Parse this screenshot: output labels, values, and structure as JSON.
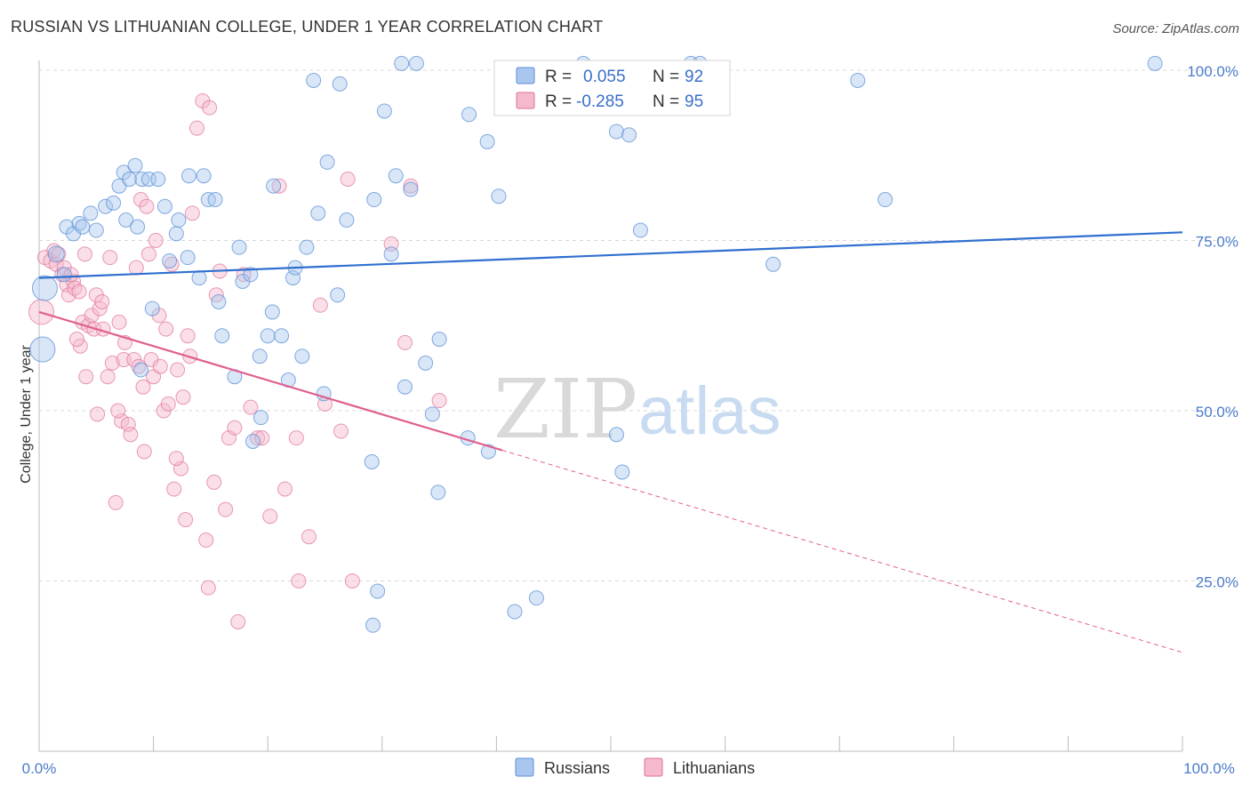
{
  "title": "RUSSIAN VS LITHUANIAN COLLEGE, UNDER 1 YEAR CORRELATION CHART",
  "source": "Source: ZipAtlas.com",
  "watermark": {
    "zip": "ZIP",
    "atlas": "atlas"
  },
  "colors": {
    "russians": "#5b8fd6",
    "russians_fill": "#a9c7ee",
    "lithuanians": "#e07098",
    "lithuanians_fill": "#f5b9cc",
    "tick_text": "#4a7bc8",
    "grid": "#d8d8d8"
  },
  "legend": {
    "russians": {
      "r_label": "R =",
      "r_value": "0.055",
      "n_label": "N =",
      "n_value": "92"
    },
    "lithuanians": {
      "r_label": "R =",
      "r_value": "-0.285",
      "n_label": "N =",
      "n_value": "95"
    }
  },
  "bottom_legend": [
    "Russians",
    "Lithuanians"
  ],
  "chart_data": {
    "type": "scatter",
    "title": "RUSSIAN VS LITHUANIAN COLLEGE, UNDER 1 YEAR CORRELATION CHART",
    "xlabel": "",
    "ylabel": "College, Under 1 year",
    "xlim": [
      0,
      100
    ],
    "ylim": [
      0,
      105
    ],
    "x_tick_labels": [
      "0.0%",
      "100.0%"
    ],
    "y_ticks": [
      25,
      50,
      75,
      100
    ],
    "y_tick_labels": [
      "25.0%",
      "50.0%",
      "75.0%",
      "100.0%"
    ],
    "grid": true,
    "legend_position": "top-center",
    "series": [
      {
        "name": "Russians",
        "trend": {
          "x": [
            0,
            100
          ],
          "y": [
            69.5,
            76.2
          ]
        },
        "points": [
          [
            0.3,
            59.0,
            14
          ],
          [
            0.5,
            68.0,
            14
          ],
          [
            1.5,
            73.0,
            9
          ],
          [
            2.2,
            70.0,
            8
          ],
          [
            2.4,
            77.0,
            8
          ],
          [
            3.0,
            76.0,
            8
          ],
          [
            3.5,
            77.5,
            8
          ],
          [
            3.8,
            77.0,
            8
          ],
          [
            4.5,
            79.0,
            8
          ],
          [
            5.0,
            76.5,
            8
          ],
          [
            5.8,
            80.0,
            8
          ],
          [
            6.5,
            80.5,
            8
          ],
          [
            7.0,
            83.0,
            8
          ],
          [
            7.4,
            85.0,
            8
          ],
          [
            7.6,
            78.0,
            8
          ],
          [
            7.9,
            84.0,
            8
          ],
          [
            8.4,
            86.0,
            8
          ],
          [
            8.6,
            77.0,
            8
          ],
          [
            9.0,
            84.0,
            8
          ],
          [
            9.6,
            84.0,
            8
          ],
          [
            10.4,
            84.0,
            8
          ],
          [
            11.0,
            80.0,
            8
          ],
          [
            12.0,
            76.0,
            8
          ],
          [
            12.2,
            78.0,
            8
          ],
          [
            13.0,
            72.5,
            8
          ],
          [
            13.1,
            84.5,
            8
          ],
          [
            14.0,
            69.5,
            8
          ],
          [
            14.4,
            84.5,
            8
          ],
          [
            14.8,
            81.0,
            8
          ],
          [
            15.4,
            81.0,
            8
          ],
          [
            9.9,
            65.0,
            8
          ],
          [
            11.4,
            72.0,
            8
          ],
          [
            15.7,
            66.0,
            8
          ],
          [
            16.0,
            61.0,
            8
          ],
          [
            17.1,
            55.0,
            8
          ],
          [
            17.5,
            74.0,
            8
          ],
          [
            17.8,
            69.0,
            8
          ],
          [
            18.5,
            70.0,
            8
          ],
          [
            19.4,
            49.0,
            8
          ],
          [
            19.3,
            58.0,
            8
          ],
          [
            20.0,
            61.0,
            8
          ],
          [
            20.4,
            64.5,
            8
          ],
          [
            20.5,
            83.0,
            8
          ],
          [
            21.2,
            61.0,
            8
          ],
          [
            21.8,
            54.5,
            8
          ],
          [
            22.2,
            69.5,
            8
          ],
          [
            22.4,
            71.0,
            8
          ],
          [
            23.0,
            58.0,
            8
          ],
          [
            23.4,
            74.0,
            8
          ],
          [
            24.0,
            98.5,
            8
          ],
          [
            24.4,
            79.0,
            8
          ],
          [
            24.9,
            52.5,
            8
          ],
          [
            25.2,
            86.5,
            8
          ],
          [
            26.1,
            67.0,
            8
          ],
          [
            26.3,
            98.0,
            8
          ],
          [
            26.9,
            78.0,
            8
          ],
          [
            18.7,
            45.5,
            8
          ],
          [
            29.1,
            42.5,
            8
          ],
          [
            29.3,
            81.0,
            8
          ],
          [
            29.6,
            23.5,
            8
          ],
          [
            29.2,
            18.5,
            8
          ],
          [
            30.2,
            94.0,
            8
          ],
          [
            30.8,
            73.0,
            8
          ],
          [
            31.2,
            84.5,
            8
          ],
          [
            32.0,
            53.5,
            8
          ],
          [
            31.7,
            101.0,
            8
          ],
          [
            32.5,
            82.5,
            8
          ],
          [
            33.0,
            101.0,
            8
          ],
          [
            33.8,
            57.0,
            8
          ],
          [
            35.0,
            60.5,
            8
          ],
          [
            34.4,
            49.5,
            8
          ],
          [
            37.5,
            46.0,
            8
          ],
          [
            34.9,
            38.0,
            8
          ],
          [
            37.6,
            93.5,
            8
          ],
          [
            39.3,
            44.0,
            8
          ],
          [
            39.2,
            89.5,
            8
          ],
          [
            40.2,
            81.5,
            8
          ],
          [
            41.6,
            20.5,
            8
          ],
          [
            43.5,
            22.5,
            8
          ],
          [
            47.6,
            101.0,
            8
          ],
          [
            50.5,
            46.5,
            8
          ],
          [
            50.5,
            91.0,
            8
          ],
          [
            51.0,
            41.0,
            8
          ],
          [
            51.6,
            90.5,
            8
          ],
          [
            52.6,
            76.5,
            8
          ],
          [
            57.0,
            101.0,
            8
          ],
          [
            57.8,
            101.0,
            8
          ],
          [
            64.2,
            71.5,
            8
          ],
          [
            71.6,
            98.5,
            8
          ],
          [
            74.0,
            81.0,
            8
          ],
          [
            97.6,
            101.0,
            8
          ],
          [
            8.9,
            56.0,
            8
          ]
        ]
      },
      {
        "name": "Lithuanians",
        "trend": {
          "x": [
            0,
            40.5
          ],
          "y": [
            64.5,
            44.2
          ]
        },
        "trend_dashed": {
          "x": [
            40.5,
            100
          ],
          "y": [
            44.2,
            14.5
          ]
        },
        "points": [
          [
            0.2,
            64.5,
            14
          ],
          [
            0.5,
            72.5,
            8
          ],
          [
            1.0,
            72.0,
            8
          ],
          [
            1.3,
            73.5,
            8
          ],
          [
            1.5,
            71.5,
            8
          ],
          [
            1.7,
            73.0,
            8
          ],
          [
            2.0,
            70.0,
            8
          ],
          [
            2.2,
            71.0,
            8
          ],
          [
            2.4,
            68.5,
            8
          ],
          [
            2.6,
            67.0,
            8
          ],
          [
            3.0,
            69.0,
            8
          ],
          [
            3.1,
            68.0,
            8
          ],
          [
            3.5,
            67.5,
            8
          ],
          [
            3.6,
            59.5,
            8
          ],
          [
            3.8,
            63.0,
            8
          ],
          [
            4.1,
            55.0,
            8
          ],
          [
            4.3,
            62.5,
            8
          ],
          [
            4.6,
            64.0,
            8
          ],
          [
            4.8,
            62.0,
            8
          ],
          [
            5.0,
            67.0,
            8
          ],
          [
            5.1,
            49.5,
            8
          ],
          [
            5.3,
            65.0,
            8
          ],
          [
            5.6,
            62.0,
            8
          ],
          [
            6.0,
            55.0,
            8
          ],
          [
            6.2,
            72.5,
            8
          ],
          [
            6.4,
            57.0,
            8
          ],
          [
            6.7,
            36.5,
            8
          ],
          [
            7.0,
            63.0,
            8
          ],
          [
            7.2,
            48.5,
            8
          ],
          [
            7.4,
            57.5,
            8
          ],
          [
            7.8,
            48.0,
            8
          ],
          [
            8.0,
            46.5,
            8
          ],
          [
            8.3,
            57.5,
            8
          ],
          [
            8.5,
            71.0,
            8
          ],
          [
            8.7,
            56.5,
            8
          ],
          [
            8.9,
            81.0,
            8
          ],
          [
            9.1,
            53.5,
            8
          ],
          [
            9.2,
            44.0,
            8
          ],
          [
            9.4,
            80.0,
            8
          ],
          [
            9.6,
            73.0,
            8
          ],
          [
            9.8,
            57.5,
            8
          ],
          [
            10.0,
            55.0,
            8
          ],
          [
            10.2,
            75.0,
            8
          ],
          [
            10.6,
            56.5,
            8
          ],
          [
            10.9,
            50.0,
            8
          ],
          [
            11.1,
            62.0,
            8
          ],
          [
            11.3,
            51.0,
            8
          ],
          [
            11.6,
            71.5,
            8
          ],
          [
            11.8,
            38.5,
            8
          ],
          [
            12.1,
            56.0,
            8
          ],
          [
            12.4,
            41.5,
            8
          ],
          [
            12.6,
            52.0,
            8
          ],
          [
            12.8,
            34.0,
            8
          ],
          [
            13.0,
            61.0,
            8
          ],
          [
            13.2,
            58.0,
            8
          ],
          [
            13.4,
            79.0,
            8
          ],
          [
            13.8,
            91.5,
            8
          ],
          [
            14.3,
            95.5,
            8
          ],
          [
            14.6,
            31.0,
            8
          ],
          [
            14.9,
            94.5,
            8
          ],
          [
            15.3,
            39.5,
            8
          ],
          [
            15.5,
            67.0,
            8
          ],
          [
            15.8,
            70.5,
            8
          ],
          [
            16.3,
            35.5,
            8
          ],
          [
            16.6,
            46.0,
            8
          ],
          [
            17.1,
            47.5,
            8
          ],
          [
            17.4,
            19.0,
            8
          ],
          [
            17.9,
            70.0,
            8
          ],
          [
            18.5,
            50.5,
            8
          ],
          [
            19.1,
            46.0,
            8
          ],
          [
            19.5,
            46.0,
            8
          ],
          [
            20.2,
            34.5,
            8
          ],
          [
            21.0,
            83.0,
            8
          ],
          [
            21.5,
            38.5,
            8
          ],
          [
            22.5,
            46.0,
            8
          ],
          [
            22.7,
            25.0,
            8
          ],
          [
            23.6,
            31.5,
            8
          ],
          [
            24.6,
            65.5,
            8
          ],
          [
            25.0,
            51.0,
            8
          ],
          [
            26.4,
            47.0,
            8
          ],
          [
            27.0,
            84.0,
            8
          ],
          [
            27.4,
            25.0,
            8
          ],
          [
            30.8,
            74.5,
            8
          ],
          [
            32.0,
            60.0,
            8
          ],
          [
            32.5,
            83.0,
            8
          ],
          [
            35.0,
            51.5,
            8
          ],
          [
            14.8,
            24.0,
            8
          ],
          [
            6.9,
            50.0,
            8
          ],
          [
            12.0,
            43.0,
            8
          ],
          [
            10.5,
            64.0,
            8
          ],
          [
            7.5,
            60.0,
            8
          ],
          [
            5.5,
            66.0,
            8
          ],
          [
            3.3,
            60.5,
            8
          ],
          [
            2.8,
            70.0,
            8
          ],
          [
            4.0,
            73.0,
            8
          ]
        ]
      }
    ]
  }
}
